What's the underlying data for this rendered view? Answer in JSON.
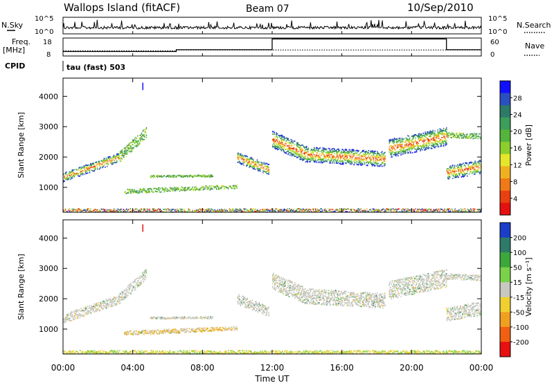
{
  "header": {
    "station": "Wallops Island (fitACF)",
    "beam": "Beam 07",
    "date": "10/Sep/2010"
  },
  "noise_panel": {
    "left_label": "N.Sky",
    "right_label": "N.Search",
    "left_ticks": [
      "10^5",
      "10^0"
    ],
    "right_ticks": [
      "10^5",
      "10^0"
    ]
  },
  "freq_panel": {
    "left_label_line1": "Freq.",
    "left_label_line2": "[MHz]",
    "right_label": "Nave",
    "left_ticks": [
      "18",
      "8"
    ],
    "right_ticks": [
      "60",
      "0"
    ],
    "freq_level_mhz": 10.5,
    "nave_steps": [
      {
        "from_hour": 0,
        "to_hour": 6.5,
        "value": 17
      },
      {
        "from_hour": 6.5,
        "to_hour": 12,
        "value": 20
      },
      {
        "from_hour": 12,
        "to_hour": 22,
        "value": 20
      },
      {
        "from_hour": 22,
        "to_hour": 24,
        "value": 20
      }
    ],
    "freq_steps": [
      {
        "from_hour": 0,
        "to_hour": 6.5,
        "value": 10.5
      },
      {
        "from_hour": 6.5,
        "to_hour": 12,
        "value": 11.5
      },
      {
        "from_hour": 12,
        "to_hour": 22,
        "value": 17.5
      },
      {
        "from_hour": 22,
        "to_hour": 24,
        "value": 11.5
      }
    ]
  },
  "cpid": {
    "label": "CPID",
    "text": "tau (fast) 503"
  },
  "chart_data": [
    {
      "type": "heatmap",
      "name": "power",
      "ylabel": "Slant Range [km]",
      "y_ticks": [
        "1000",
        "2000",
        "3000",
        "4000"
      ],
      "ylim": [
        180,
        4600
      ],
      "colorbar_label": "Power [dB]",
      "colorbar_ticks": [
        "4",
        "8",
        "12",
        "16",
        "20",
        "24",
        "28"
      ],
      "colorbar_colors": [
        "#1010ff",
        "#2a4fbf",
        "#2e7a68",
        "#3c9e5a",
        "#55b43c",
        "#8ccf2d",
        "#e6e62a",
        "#f0b020",
        "#f07a18",
        "#e84010",
        "#e61010"
      ]
    },
    {
      "type": "heatmap",
      "name": "velocity",
      "ylabel": "Slant Range [km]",
      "y_ticks": [
        "1000",
        "2000",
        "3000",
        "4000"
      ],
      "ylim": [
        180,
        4600
      ],
      "colorbar_label": "Velocity [m s⁻¹]",
      "colorbar_ticks": [
        "200",
        "100",
        "50",
        "15",
        "-15",
        "-50",
        "-100",
        "-200"
      ],
      "colorbar_colors": [
        "#1a3ec8",
        "#2e7a68",
        "#3ca83c",
        "#7ad24a",
        "#c8c8c0",
        "#f0d030",
        "#f0a020",
        "#f06010",
        "#e81010"
      ],
      "xlabel": "Time UT",
      "x_ticks": [
        "00:00",
        "04:00",
        "08:00",
        "12:00",
        "16:00",
        "20:00",
        "00:00"
      ],
      "xlim_hours": [
        0,
        24
      ]
    }
  ]
}
